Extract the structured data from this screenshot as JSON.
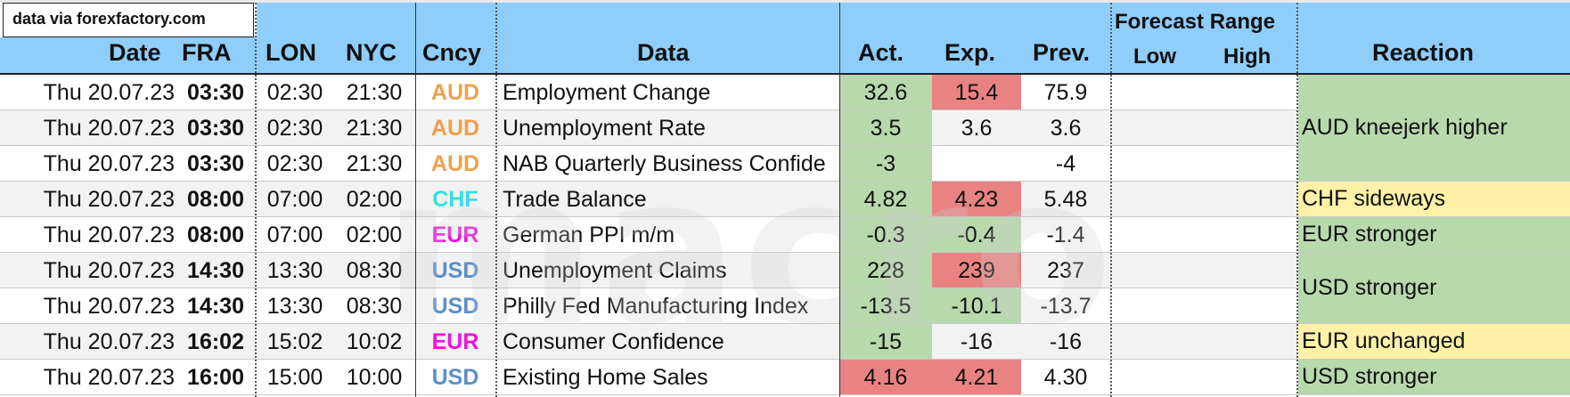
{
  "source_label": "data via forexfactory.com",
  "headers": {
    "date": "Date",
    "fra": "FRA",
    "lon": "LON",
    "nyc": "NYC",
    "ccy": "Cncy",
    "data": "Data",
    "act": "Act.",
    "exp": "Exp.",
    "prev": "Prev.",
    "forecast_range": "Forecast Range",
    "low": "Low",
    "high": "High",
    "reaction": "Reaction"
  },
  "watermark_text": "macro",
  "currency_colors": {
    "AUD": "#f0a04b",
    "CHF": "#33e0e0",
    "EUR": "#ee11dd",
    "USD": "#5b8fc9"
  },
  "highlight_colors": {
    "green": "#b7d9ad",
    "red": "#e98383",
    "yellow": "#fff2a8"
  },
  "rows": [
    {
      "date": "Thu 20.07.23",
      "fra": "03:30",
      "lon": "02:30",
      "nyc": "21:30",
      "ccy": "AUD",
      "data": "Employment Change",
      "act": "32.6",
      "exp": "15.4",
      "prev": "75.9",
      "act_hl": "green",
      "exp_hl": "red"
    },
    {
      "date": "Thu 20.07.23",
      "fra": "03:30",
      "lon": "02:30",
      "nyc": "21:30",
      "ccy": "AUD",
      "data": "Unemployment Rate",
      "act": "3.5",
      "exp": "3.6",
      "prev": "3.6",
      "act_hl": "green",
      "exp_hl": ""
    },
    {
      "date": "Thu 20.07.23",
      "fra": "03:30",
      "lon": "02:30",
      "nyc": "21:30",
      "ccy": "AUD",
      "data": "NAB Quarterly Business Confide",
      "act": "-3",
      "exp": "",
      "prev": "-4",
      "act_hl": "green",
      "exp_hl": ""
    },
    {
      "date": "Thu 20.07.23",
      "fra": "08:00",
      "lon": "07:00",
      "nyc": "02:00",
      "ccy": "CHF",
      "data": "Trade Balance",
      "act": "4.82",
      "exp": "4.23",
      "prev": "5.48",
      "act_hl": "green",
      "exp_hl": "red"
    },
    {
      "date": "Thu 20.07.23",
      "fra": "08:00",
      "lon": "07:00",
      "nyc": "02:00",
      "ccy": "EUR",
      "data": "German PPI m/m",
      "act": "-0.3",
      "exp": "-0.4",
      "prev": "-1.4",
      "act_hl": "green",
      "exp_hl": "green"
    },
    {
      "date": "Thu 20.07.23",
      "fra": "14:30",
      "lon": "13:30",
      "nyc": "08:30",
      "ccy": "USD",
      "data": "Unemployment Claims",
      "act": "228",
      "exp": "239",
      "prev": "237",
      "act_hl": "green",
      "exp_hl": "red"
    },
    {
      "date": "Thu 20.07.23",
      "fra": "14:30",
      "lon": "13:30",
      "nyc": "08:30",
      "ccy": "USD",
      "data": "Philly Fed Manufacturing Index",
      "act": "-13.5",
      "exp": "-10.1",
      "prev": "-13.7",
      "act_hl": "green",
      "exp_hl": "green"
    },
    {
      "date": "Thu 20.07.23",
      "fra": "16:02",
      "lon": "15:02",
      "nyc": "10:02",
      "ccy": "EUR",
      "data": "Consumer Confidence",
      "act": "-15",
      "exp": "-16",
      "prev": "-16",
      "act_hl": "green",
      "exp_hl": ""
    },
    {
      "date": "Thu 20.07.23",
      "fra": "16:00",
      "lon": "15:00",
      "nyc": "10:00",
      "ccy": "USD",
      "data": "Existing Home Sales",
      "act": "4.16",
      "exp": "4.21",
      "prev": "4.30",
      "act_hl": "red",
      "exp_hl": "red"
    }
  ],
  "reactions": [
    {
      "text": "AUD kneejerk higher",
      "first_row": 0,
      "rows": 3,
      "color": "green"
    },
    {
      "text": "CHF sideways",
      "first_row": 3,
      "rows": 1,
      "color": "yellow"
    },
    {
      "text": "EUR stronger",
      "first_row": 4,
      "rows": 1,
      "color": "green"
    },
    {
      "text": "USD stronger",
      "first_row": 5,
      "rows": 2,
      "color": "green"
    },
    {
      "text": "EUR unchanged",
      "first_row": 7,
      "rows": 1,
      "color": "yellow"
    },
    {
      "text": "USD stronger",
      "first_row": 8,
      "rows": 1,
      "color": "green"
    }
  ]
}
